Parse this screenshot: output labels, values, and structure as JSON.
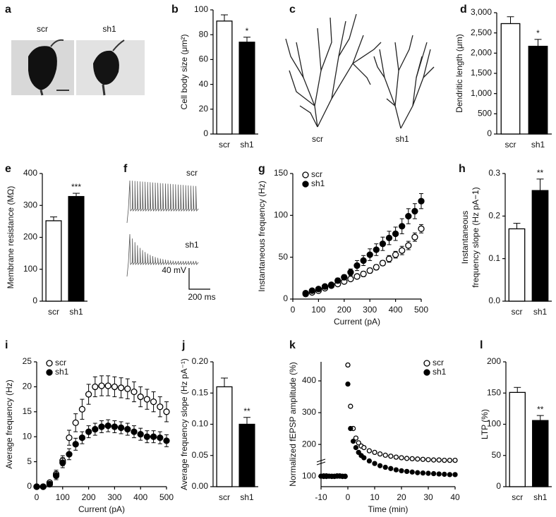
{
  "chart_data": [
    {
      "type": "bar",
      "panel": "b",
      "ylabel": "Cell body size (μm²)",
      "categories": [
        "scr",
        "sh1"
      ],
      "values": [
        91,
        74
      ],
      "errors": [
        5,
        4
      ],
      "colors": [
        "#ffffff",
        "#000000"
      ],
      "annotation": "*",
      "ylim": [
        0,
        100
      ],
      "yticks": [
        0,
        20,
        40,
        60,
        80,
        100
      ]
    },
    {
      "type": "bar",
      "panel": "d",
      "ylabel": "Dendritic length (μm)",
      "categories": [
        "scr",
        "sh1"
      ],
      "values": [
        2730,
        2170
      ],
      "errors": [
        170,
        170
      ],
      "colors": [
        "#ffffff",
        "#000000"
      ],
      "annotation": "*",
      "ylim": [
        0,
        3000
      ],
      "yticks": [
        0,
        500,
        {
          "value": 1000,
          "label": "1,000"
        },
        {
          "value": 1500,
          "label": "1,500"
        },
        {
          "value": 2000,
          "label": "2,000"
        },
        {
          "value": 2500,
          "label": "2,500"
        },
        {
          "value": 3000,
          "label": "3,000"
        }
      ]
    },
    {
      "type": "bar",
      "panel": "e",
      "ylabel": "Membrane resistance (MΩ)",
      "categories": [
        "scr",
        "sh1"
      ],
      "values": [
        252,
        328
      ],
      "errors": [
        12,
        10
      ],
      "colors": [
        "#ffffff",
        "#000000"
      ],
      "annotation": "***",
      "ylim": [
        0,
        400
      ],
      "yticks": [
        0,
        100,
        200,
        300,
        400
      ]
    },
    {
      "type": "scatter",
      "panel": "g",
      "ylabel": "Instantaneous frequency (Hz)",
      "xlabel": "Current (pA)",
      "legend": "upper left",
      "x": [
        50,
        75,
        100,
        125,
        150,
        175,
        200,
        225,
        250,
        275,
        300,
        325,
        350,
        375,
        400,
        425,
        450,
        475,
        500
      ],
      "series": [
        {
          "name": "scr",
          "color": "#000000",
          "fill": "#ffffff",
          "values": [
            6,
            8,
            10,
            13,
            16,
            18,
            21,
            24,
            27,
            30,
            34,
            38,
            43,
            48,
            53,
            58,
            64,
            74,
            84
          ],
          "errors": [
            1,
            1,
            1,
            1,
            2,
            2,
            2,
            2,
            2,
            3,
            3,
            3,
            3,
            4,
            4,
            5,
            5,
            5,
            5
          ]
        },
        {
          "name": "sh1",
          "color": "#000000",
          "fill": "#000000",
          "values": [
            7,
            10,
            12,
            15,
            17,
            22,
            26,
            32,
            40,
            46,
            53,
            59,
            66,
            73,
            78,
            87,
            99,
            105,
            117
          ],
          "errors": [
            1,
            1,
            1,
            2,
            2,
            3,
            3,
            4,
            6,
            6,
            7,
            7,
            8,
            8,
            8,
            9,
            9,
            9,
            9
          ]
        }
      ],
      "xlim": [
        0,
        500
      ],
      "xticks": [
        0,
        100,
        200,
        300,
        400,
        500
      ],
      "ylim": [
        0,
        150
      ],
      "yticks": [
        0,
        50,
        100,
        150
      ]
    },
    {
      "type": "bar",
      "panel": "h",
      "ylabel": [
        "Instantaneous",
        "frequency slope (Hz pA−1)"
      ],
      "categories": [
        "scr",
        "sh1"
      ],
      "values": [
        0.17,
        0.26
      ],
      "errors": [
        0.013,
        0.027
      ],
      "colors": [
        "#ffffff",
        "#000000"
      ],
      "annotation": "**",
      "ylim": [
        0,
        0.3
      ],
      "yticks": [
        {
          "value": 0,
          "label": "0.0"
        },
        0.1,
        0.2,
        0.3
      ]
    },
    {
      "type": "scatter",
      "panel": "i",
      "ylabel": "Average frequency (Hz)",
      "xlabel": "Current (pA)",
      "legend": "upper left",
      "x": [
        0,
        25,
        50,
        75,
        100,
        125,
        150,
        175,
        200,
        225,
        250,
        275,
        300,
        325,
        350,
        375,
        400,
        425,
        450,
        475,
        500
      ],
      "series": [
        {
          "name": "scr",
          "color": "#000000",
          "fill": "#ffffff",
          "values": [
            0,
            0,
            0.8,
            2.5,
            5.2,
            9.8,
            12.8,
            15.5,
            18.5,
            20,
            20.2,
            20.2,
            20,
            19.8,
            19.6,
            19,
            18,
            17.5,
            17,
            16,
            15
          ],
          "errors": [
            0,
            0,
            0.3,
            0.8,
            1,
            1.5,
            1.8,
            2,
            2,
            2,
            2,
            2,
            2,
            2,
            2,
            2,
            2,
            2,
            2,
            2,
            2
          ]
        },
        {
          "name": "sh1",
          "color": "#000000",
          "fill": "#000000",
          "values": [
            0,
            0,
            0.5,
            2.2,
            4.8,
            6.5,
            8.5,
            9.8,
            11,
            11.5,
            12,
            12.2,
            12,
            11.8,
            11.5,
            11,
            10.5,
            10,
            10,
            9.8,
            9.2
          ],
          "errors": [
            0,
            0,
            0.3,
            0.8,
            1,
            1.1,
            1.2,
            1.2,
            1.2,
            1.2,
            1.2,
            1.2,
            1.2,
            1.2,
            1.2,
            1.2,
            1.2,
            1.2,
            1.2,
            1.2,
            1.2
          ]
        }
      ],
      "xlim": [
        0,
        500
      ],
      "xticks": [
        0,
        100,
        200,
        300,
        400,
        500
      ],
      "ylim": [
        0,
        25
      ],
      "yticks": [
        0,
        5,
        10,
        15,
        20,
        25
      ]
    },
    {
      "type": "bar",
      "panel": "j",
      "ylabel": "Average frequency slope (Hz pA⁻¹)",
      "categories": [
        "scr",
        "sh1"
      ],
      "values": [
        0.16,
        0.1
      ],
      "errors": [
        0.014,
        0.011
      ],
      "colors": [
        "#ffffff",
        "#000000"
      ],
      "annotation": "**",
      "ylim": [
        0,
        0.2
      ],
      "yticks": [
        {
          "value": 0,
          "label": "0.00"
        },
        {
          "value": 0.05,
          "label": "0.05"
        },
        {
          "value": 0.1,
          "label": "0.10"
        },
        {
          "value": 0.15,
          "label": "0.15"
        },
        {
          "value": 0.2,
          "label": "0.20"
        }
      ]
    },
    {
      "type": "scatter",
      "panel": "k",
      "ylabel": "Normalized fEPSP amplitude (%)",
      "xlabel": "Time (min)",
      "legend": "upper right",
      "x": [
        -10,
        -9,
        -8,
        -7,
        -6,
        -5,
        -4,
        -3,
        -2,
        -1,
        0,
        1,
        2,
        3,
        4,
        5,
        6,
        8,
        10,
        12,
        14,
        16,
        18,
        20,
        22,
        24,
        26,
        28,
        30,
        32,
        34,
        36,
        38,
        40
      ],
      "series": [
        {
          "name": "scr",
          "color": "#000000",
          "fill": "#ffffff",
          "values": [
            100,
            99,
            101,
            100,
            99,
            100,
            101,
            100,
            99,
            100,
            450,
            320,
            250,
            220,
            205,
            195,
            190,
            180,
            175,
            170,
            166,
            163,
            160,
            158,
            156,
            155,
            154,
            153,
            152,
            151,
            151,
            150,
            150,
            150
          ]
        },
        {
          "name": "sh1",
          "color": "#000000",
          "fill": "#000000",
          "values": [
            100,
            101,
            99,
            100,
            100,
            99,
            100,
            101,
            100,
            99,
            390,
            250,
            210,
            190,
            175,
            165,
            158,
            148,
            140,
            133,
            128,
            124,
            120,
            117,
            115,
            113,
            111,
            110,
            109,
            108,
            107,
            106,
            105,
            105
          ]
        }
      ],
      "xlim": [
        -10,
        40
      ],
      "xticks": [
        -10,
        0,
        10,
        20,
        30,
        40
      ],
      "ylim": [
        67,
        460
      ],
      "yticks": [
        100,
        200,
        300,
        400
      ]
    },
    {
      "type": "bar",
      "panel": "l",
      "ylabel": "LTP (%)",
      "categories": [
        "scr",
        "sh1"
      ],
      "values": [
        151,
        106
      ],
      "errors": [
        8,
        8
      ],
      "colors": [
        "#ffffff",
        "#000000"
      ],
      "annotation": "**",
      "ylim": [
        0,
        200
      ],
      "yticks": [
        0,
        50,
        100,
        150,
        200
      ]
    }
  ],
  "figures": [
    {
      "panel": "a",
      "labels": [
        "scr",
        "sh1"
      ]
    },
    {
      "panel": "c",
      "labels": [
        "scr",
        "sh1"
      ]
    },
    {
      "panel": "f",
      "labels": [
        "scr",
        "sh1"
      ],
      "scale": [
        "40 mV",
        "200 ms"
      ]
    }
  ]
}
